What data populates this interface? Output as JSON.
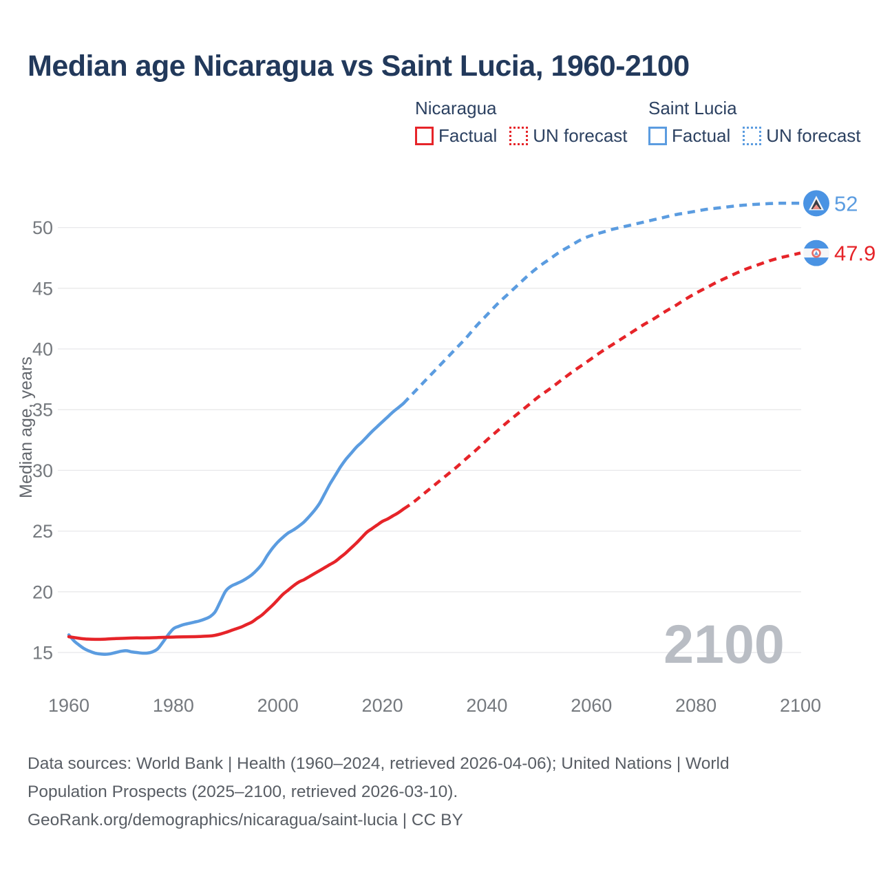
{
  "title": "Median age Nicaragua vs Saint Lucia, 1960-2100",
  "watermark": "2100",
  "legend": {
    "groups": [
      {
        "name": "Nicaragua",
        "color": "#e62429",
        "items": [
          {
            "label": "Factual",
            "style": "solid"
          },
          {
            "label": "UN forecast",
            "style": "dotted"
          }
        ]
      },
      {
        "name": "Saint Lucia",
        "color": "#5b9ce0",
        "items": [
          {
            "label": "Factual",
            "style": "solid"
          },
          {
            "label": "UN forecast",
            "style": "dotted"
          }
        ]
      }
    ]
  },
  "footer": {
    "lines": [
      "Data sources: World Bank | Health (1960–2024, retrieved 2026-04-06); United Nations | World",
      "Population Prospects (2025–2100, retrieved 2026-03-10).",
      "GeoRank.org/demographics/nicaragua/saint-lucia | CC BY"
    ]
  },
  "chart_data": {
    "type": "line",
    "title": "Median age Nicaragua vs Saint Lucia, 1960-2100",
    "xlabel": "",
    "ylabel": "Median age, years",
    "xlim": [
      1960,
      2100
    ],
    "ylim": [
      15,
      50
    ],
    "xticks": [
      1960,
      1980,
      2000,
      2020,
      2040,
      2060,
      2080,
      2100
    ],
    "yticks": [
      15,
      20,
      25,
      30,
      35,
      40,
      45,
      50
    ],
    "grid": "horizontal",
    "legend_position": "top",
    "colors": {
      "nicaragua": "#e62429",
      "saint_lucia": "#5b9ce0",
      "grid": "#e8e8ea",
      "tick_text": "#75797e",
      "axis_title_text": "#63676d",
      "watermark_text": "#b9bdc4",
      "title_text": "#22395b",
      "footer_text": "#585d64"
    },
    "series": [
      {
        "name": "Saint Lucia — Factual",
        "country": "Saint Lucia",
        "segment": "factual",
        "color": "#5b9ce0",
        "dash": "solid",
        "points": [
          [
            1960,
            16.45
          ],
          [
            1961,
            15.95
          ],
          [
            1962,
            15.6
          ],
          [
            1963,
            15.3
          ],
          [
            1964,
            15.1
          ],
          [
            1965,
            14.95
          ],
          [
            1966,
            14.88
          ],
          [
            1967,
            14.85
          ],
          [
            1968,
            14.9
          ],
          [
            1969,
            15.0
          ],
          [
            1970,
            15.1
          ],
          [
            1971,
            15.15
          ],
          [
            1972,
            15.05
          ],
          [
            1973,
            15.0
          ],
          [
            1974,
            14.95
          ],
          [
            1975,
            14.95
          ],
          [
            1976,
            15.05
          ],
          [
            1977,
            15.3
          ],
          [
            1978,
            15.85
          ],
          [
            1979,
            16.45
          ],
          [
            1980,
            16.95
          ],
          [
            1981,
            17.15
          ],
          [
            1982,
            17.3
          ],
          [
            1983,
            17.4
          ],
          [
            1984,
            17.5
          ],
          [
            1985,
            17.6
          ],
          [
            1986,
            17.75
          ],
          [
            1987,
            17.95
          ],
          [
            1988,
            18.35
          ],
          [
            1989,
            19.2
          ],
          [
            1990,
            20.05
          ],
          [
            1991,
            20.45
          ],
          [
            1992,
            20.65
          ],
          [
            1993,
            20.85
          ],
          [
            1994,
            21.1
          ],
          [
            1995,
            21.4
          ],
          [
            1996,
            21.8
          ],
          [
            1997,
            22.3
          ],
          [
            1998,
            23.0
          ],
          [
            1999,
            23.6
          ],
          [
            2000,
            24.1
          ],
          [
            2001,
            24.5
          ],
          [
            2002,
            24.85
          ],
          [
            2003,
            25.1
          ],
          [
            2004,
            25.4
          ],
          [
            2005,
            25.75
          ],
          [
            2006,
            26.2
          ],
          [
            2007,
            26.7
          ],
          [
            2008,
            27.3
          ],
          [
            2009,
            28.1
          ],
          [
            2010,
            28.9
          ],
          [
            2011,
            29.6
          ],
          [
            2012,
            30.3
          ],
          [
            2013,
            30.9
          ],
          [
            2014,
            31.4
          ],
          [
            2015,
            31.9
          ],
          [
            2016,
            32.3
          ],
          [
            2017,
            32.75
          ],
          [
            2018,
            33.2
          ],
          [
            2019,
            33.6
          ],
          [
            2020,
            34.0
          ],
          [
            2021,
            34.4
          ],
          [
            2022,
            34.8
          ],
          [
            2023,
            35.15
          ],
          [
            2024,
            35.5
          ]
        ]
      },
      {
        "name": "Saint Lucia — UN forecast",
        "country": "Saint Lucia",
        "segment": "forecast",
        "color": "#5b9ce0",
        "dash": "dashed",
        "points": [
          [
            2024,
            35.5
          ],
          [
            2026,
            36.4
          ],
          [
            2028,
            37.3
          ],
          [
            2030,
            38.2
          ],
          [
            2032,
            39.1
          ],
          [
            2034,
            40.0
          ],
          [
            2036,
            40.9
          ],
          [
            2038,
            41.9
          ],
          [
            2040,
            42.8
          ],
          [
            2042,
            43.7
          ],
          [
            2044,
            44.5
          ],
          [
            2046,
            45.3
          ],
          [
            2048,
            46.1
          ],
          [
            2050,
            46.8
          ],
          [
            2052,
            47.4
          ],
          [
            2054,
            48.0
          ],
          [
            2056,
            48.5
          ],
          [
            2058,
            49.0
          ],
          [
            2060,
            49.35
          ],
          [
            2062,
            49.6
          ],
          [
            2064,
            49.85
          ],
          [
            2066,
            50.05
          ],
          [
            2068,
            50.25
          ],
          [
            2070,
            50.45
          ],
          [
            2072,
            50.65
          ],
          [
            2074,
            50.85
          ],
          [
            2076,
            51.05
          ],
          [
            2078,
            51.2
          ],
          [
            2080,
            51.35
          ],
          [
            2082,
            51.5
          ],
          [
            2084,
            51.6
          ],
          [
            2086,
            51.7
          ],
          [
            2088,
            51.8
          ],
          [
            2090,
            51.87
          ],
          [
            2092,
            51.93
          ],
          [
            2094,
            51.97
          ],
          [
            2096,
            52.0
          ],
          [
            2098,
            52.0
          ],
          [
            2100,
            52.0
          ]
        ]
      },
      {
        "name": "Nicaragua — Factual",
        "country": "Nicaragua",
        "segment": "factual",
        "color": "#e62429",
        "dash": "solid",
        "points": [
          [
            1960,
            16.3
          ],
          [
            1962,
            16.17
          ],
          [
            1963,
            16.12
          ],
          [
            1965,
            16.08
          ],
          [
            1967,
            16.1
          ],
          [
            1969,
            16.15
          ],
          [
            1971,
            16.18
          ],
          [
            1973,
            16.2
          ],
          [
            1975,
            16.2
          ],
          [
            1977,
            16.23
          ],
          [
            1979,
            16.26
          ],
          [
            1981,
            16.28
          ],
          [
            1983,
            16.3
          ],
          [
            1985,
            16.32
          ],
          [
            1987,
            16.36
          ],
          [
            1988,
            16.42
          ],
          [
            1989,
            16.52
          ],
          [
            1990,
            16.65
          ],
          [
            1991,
            16.8
          ],
          [
            1992,
            16.95
          ],
          [
            1993,
            17.1
          ],
          [
            1994,
            17.3
          ],
          [
            1995,
            17.5
          ],
          [
            1996,
            17.8
          ],
          [
            1997,
            18.1
          ],
          [
            1998,
            18.5
          ],
          [
            1999,
            18.9
          ],
          [
            2000,
            19.35
          ],
          [
            2001,
            19.8
          ],
          [
            2002,
            20.15
          ],
          [
            2003,
            20.5
          ],
          [
            2004,
            20.8
          ],
          [
            2005,
            21.0
          ],
          [
            2006,
            21.25
          ],
          [
            2007,
            21.5
          ],
          [
            2008,
            21.75
          ],
          [
            2009,
            22.0
          ],
          [
            2010,
            22.25
          ],
          [
            2011,
            22.5
          ],
          [
            2012,
            22.85
          ],
          [
            2013,
            23.2
          ],
          [
            2014,
            23.6
          ],
          [
            2015,
            24.0
          ],
          [
            2016,
            24.45
          ],
          [
            2017,
            24.9
          ],
          [
            2018,
            25.2
          ],
          [
            2019,
            25.5
          ],
          [
            2020,
            25.8
          ],
          [
            2021,
            26.0
          ],
          [
            2022,
            26.25
          ],
          [
            2023,
            26.5
          ],
          [
            2024,
            26.8
          ]
        ]
      },
      {
        "name": "Nicaragua — UN forecast",
        "country": "Nicaragua",
        "segment": "forecast",
        "color": "#e62429",
        "dash": "dashed",
        "points": [
          [
            2024,
            26.8
          ],
          [
            2026,
            27.4
          ],
          [
            2028,
            28.1
          ],
          [
            2030,
            28.8
          ],
          [
            2032,
            29.5
          ],
          [
            2034,
            30.2
          ],
          [
            2036,
            30.95
          ],
          [
            2038,
            31.7
          ],
          [
            2040,
            32.5
          ],
          [
            2042,
            33.25
          ],
          [
            2044,
            34.0
          ],
          [
            2046,
            34.7
          ],
          [
            2048,
            35.4
          ],
          [
            2050,
            36.1
          ],
          [
            2052,
            36.7
          ],
          [
            2054,
            37.35
          ],
          [
            2056,
            38.0
          ],
          [
            2058,
            38.6
          ],
          [
            2060,
            39.2
          ],
          [
            2062,
            39.8
          ],
          [
            2064,
            40.35
          ],
          [
            2066,
            40.9
          ],
          [
            2068,
            41.45
          ],
          [
            2070,
            42.0
          ],
          [
            2072,
            42.5
          ],
          [
            2074,
            43.05
          ],
          [
            2076,
            43.55
          ],
          [
            2078,
            44.1
          ],
          [
            2080,
            44.6
          ],
          [
            2082,
            45.05
          ],
          [
            2084,
            45.5
          ],
          [
            2086,
            45.9
          ],
          [
            2088,
            46.3
          ],
          [
            2090,
            46.65
          ],
          [
            2092,
            46.95
          ],
          [
            2094,
            47.25
          ],
          [
            2096,
            47.5
          ],
          [
            2098,
            47.7
          ],
          [
            2100,
            47.9
          ]
        ]
      }
    ],
    "end_markers": [
      {
        "country": "Saint Lucia",
        "flag": "saint-lucia",
        "year": 2100,
        "value": 52,
        "label": "52",
        "color": "#5b9ce0"
      },
      {
        "country": "Nicaragua",
        "flag": "nicaragua",
        "year": 2100,
        "value": 47.9,
        "label": "47.9",
        "color": "#e62429"
      }
    ]
  }
}
